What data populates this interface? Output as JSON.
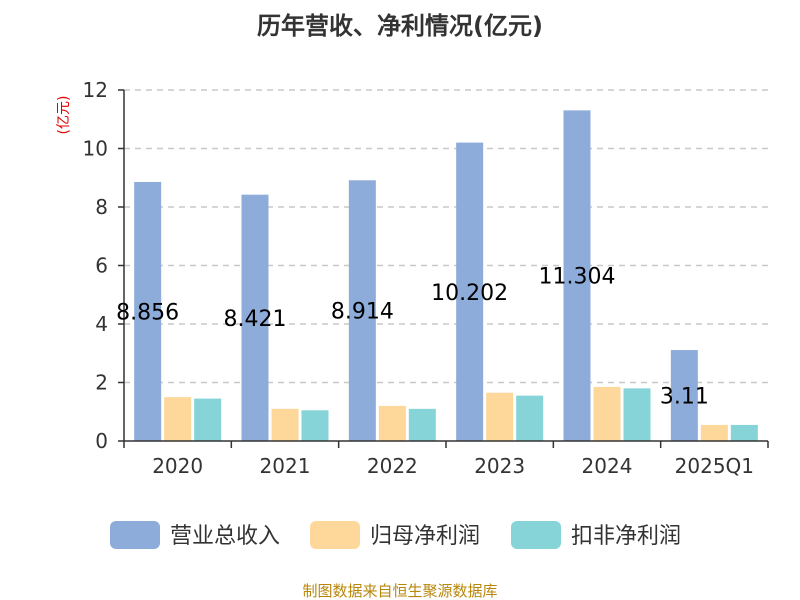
{
  "chart_data": {
    "type": "bar",
    "title": "历年营收、净利情况(亿元)",
    "unit_label": "(亿元)",
    "categories": [
      "2020",
      "2021",
      "2022",
      "2023",
      "2024",
      "2025Q1"
    ],
    "ylim": [
      0,
      12
    ],
    "yticks": [
      0,
      2,
      4,
      6,
      8,
      10,
      12
    ],
    "grid": "horizontal dashed",
    "legend_position": "bottom",
    "series": [
      {
        "name": "营业总收入",
        "color": "#8eacd9",
        "values": [
          8.856,
          8.421,
          8.914,
          10.202,
          11.304,
          3.11
        ]
      },
      {
        "name": "归母净利润",
        "color": "#fdd89a",
        "values": [
          1.5,
          1.1,
          1.2,
          1.65,
          1.85,
          0.55
        ]
      },
      {
        "name": "扣非净利润",
        "color": "#86d4d8",
        "values": [
          1.45,
          1.05,
          1.1,
          1.55,
          1.8,
          0.55
        ]
      }
    ],
    "data_labels": [
      "8.856",
      "8.421",
      "8.914",
      "10.202",
      "11.304",
      "3.11"
    ],
    "source": "制图数据来自恒生聚源数据库"
  }
}
